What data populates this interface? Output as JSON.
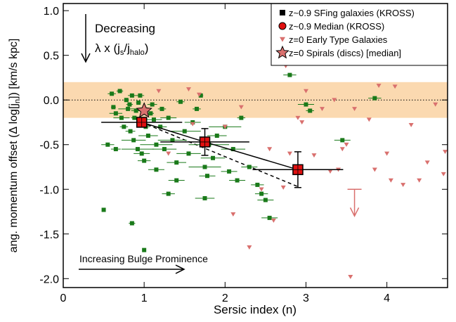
{
  "chart_data": {
    "type": "scatter",
    "x_label": "Sersic index (n)",
    "y_label": [
      "ang. momentum offset (Δ log[j",
      "n",
      "]) [km/s kpc]"
    ],
    "xlim": [
      0,
      4.75
    ],
    "ylim": [
      -2.1,
      1.08
    ],
    "xticks": [
      0,
      1,
      2,
      3,
      4
    ],
    "yticks": [
      {
        "value": 1.0,
        "label": "1.0"
      },
      {
        "value": 0.5,
        "label": "0.5"
      },
      {
        "value": 0.0,
        "label": "0.0"
      },
      {
        "value": -0.5,
        "label": "-0.5"
      },
      {
        "value": -1.0,
        "label": "-1.0"
      },
      {
        "value": -1.5,
        "label": "-1.5"
      },
      {
        "value": -2.0,
        "label": "-2.0"
      }
    ],
    "band": {
      "range": [
        -0.2,
        0.2
      ],
      "color": "#fbd9b0"
    },
    "zero_line": 0.0,
    "series": [
      {
        "name": "z~0.9 SFing galaxies (KROSS)",
        "marker": "square",
        "color": "#1a7a1a",
        "legend_color": "#000000",
        "x": [
          0.6,
          0.62,
          0.65,
          0.7,
          0.72,
          0.75,
          0.78,
          0.8,
          0.82,
          0.83,
          0.85,
          0.87,
          0.88,
          0.9,
          0.92,
          0.93,
          0.95,
          0.97,
          1.0,
          1.02,
          1.05,
          1.08,
          1.1,
          1.12,
          1.15,
          1.2,
          1.22,
          1.25,
          1.3,
          1.35,
          1.4,
          1.45,
          1.5,
          1.55,
          1.6,
          1.65,
          1.7,
          1.75,
          1.78,
          1.8,
          1.85,
          1.9,
          2.0,
          2.05,
          2.1,
          2.15,
          2.2,
          2.3,
          2.45,
          2.5,
          2.55,
          2.4,
          2.8,
          3.0,
          3.05,
          3.45,
          3.85,
          0.5,
          1.0,
          0.85,
          1.3,
          1.75,
          1.15,
          0.65,
          0.55,
          1.4
        ],
        "values": [
          0.07,
          -0.08,
          -0.15,
          0.1,
          -0.2,
          -0.3,
          0.0,
          -0.1,
          -0.05,
          -0.35,
          0.05,
          -0.45,
          -0.2,
          -0.12,
          -0.55,
          -0.03,
          0.05,
          -0.6,
          -0.68,
          -0.3,
          -0.4,
          -0.15,
          -0.05,
          -0.22,
          -0.5,
          -0.3,
          -0.1,
          -0.55,
          -0.2,
          -0.45,
          -0.7,
          -0.02,
          -0.35,
          -0.6,
          -0.25,
          -0.1,
          0.05,
          -0.75,
          -0.85,
          -0.5,
          -0.65,
          -0.4,
          -0.3,
          -0.8,
          -0.55,
          -0.9,
          -0.2,
          -0.75,
          -1.05,
          -1.12,
          -1.32,
          -0.95,
          0.28,
          -0.05,
          -0.12,
          -0.45,
          0.02,
          -1.23,
          -1.68,
          -1.38,
          -1.05,
          -1.1,
          -0.78,
          -0.55,
          -0.5,
          -0.9
        ],
        "xerr": [
          0.05,
          0.03,
          0.08,
          0.04,
          0.1,
          0.05,
          0.03,
          0.12,
          0.04,
          0.06,
          0.05,
          0.15,
          0.04,
          0.06,
          0.2,
          0.03,
          0.05,
          0.1,
          0.08,
          0.05,
          0.12,
          0.04,
          0.06,
          0.1,
          0.2,
          0.08,
          0.05,
          0.15,
          0.1,
          0.18,
          0.12,
          0.05,
          0.2,
          0.15,
          0.1,
          0.05,
          0.03,
          0.2,
          0.1,
          0.25,
          0.15,
          0.12,
          0.2,
          0.1,
          0.15,
          0.1,
          0.05,
          0.1,
          0.08,
          0.1,
          0.1,
          0.08,
          0.08,
          0.1,
          0.05,
          0.1,
          0.08,
          0.02,
          0.02,
          0.04,
          0.08,
          0.12,
          0.1,
          0.06,
          0.08,
          0.1
        ]
      },
      {
        "name": "z~0.9 Median (KROSS)",
        "marker": "median",
        "color": "#e01010",
        "x": [
          0.97,
          1.75,
          2.9
        ],
        "values": [
          -0.25,
          -0.47,
          -0.78
        ],
        "xerr": [
          0.5,
          0.55,
          0.56
        ],
        "yerr": [
          0.03,
          0.15,
          0.2
        ]
      },
      {
        "name": "z=0 Early Type Galaxies",
        "marker": "triangle",
        "color": "#d9706e",
        "x": [
          1.18,
          1.55,
          1.68,
          1.6,
          1.3,
          2.0,
          2.45,
          2.55,
          2.8,
          2.72,
          3.0,
          3.2,
          3.35,
          3.5,
          3.1,
          3.3,
          3.4,
          3.78,
          3.85,
          3.9,
          4.0,
          4.05,
          4.2,
          4.3,
          4.4,
          4.5,
          4.6,
          4.7,
          4.72,
          3.45,
          2.95,
          2.3,
          2.1,
          2.6,
          3.55,
          2.2,
          3.6,
          4.1,
          2.75,
          2.9
        ],
        "values": [
          0.1,
          0.12,
          0.06,
          -0.27,
          -0.6,
          -0.3,
          -1.0,
          -0.55,
          -0.6,
          -0.98,
          0.1,
          -0.1,
          0.0,
          -0.5,
          -0.62,
          -0.8,
          -0.78,
          -0.22,
          -0.78,
          0.16,
          -0.6,
          -0.9,
          -0.95,
          -0.28,
          -0.9,
          -0.7,
          -0.05,
          -0.83,
          -0.58,
          -0.55,
          -0.25,
          -1.65,
          -1.28,
          -1.35,
          -1.98,
          -0.08,
          -0.1,
          0.15,
          0.38,
          -0.2
        ]
      },
      {
        "name": "z=0 Spirals (discs) [median]",
        "marker": "star",
        "color": "#d9706e",
        "x": [
          1.0
        ],
        "values": [
          -0.12
        ]
      }
    ],
    "dashed_line": {
      "x": [
        0.97,
        2.9
      ],
      "y": [
        -0.25,
        -0.97
      ]
    },
    "upper_limit": {
      "x": 3.6,
      "y": -1.0,
      "to": -1.3,
      "color": "#d9706e"
    },
    "annotations": {
      "decreasing": "Decreasing",
      "lambda": [
        "λ x (j",
        "s",
        "/j",
        "halo",
        ")"
      ],
      "bulge": "Increasing Bulge Prominence"
    }
  }
}
